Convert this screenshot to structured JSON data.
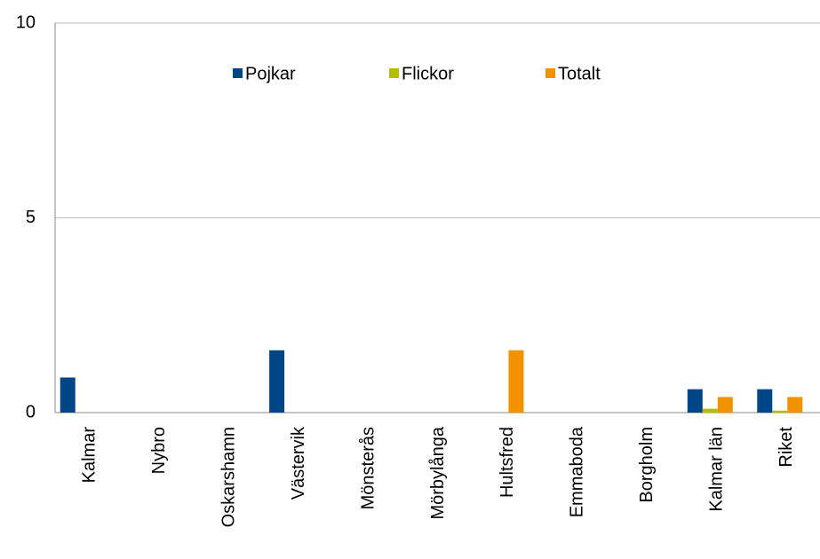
{
  "chart_data": {
    "type": "bar",
    "categories": [
      "Kalmar",
      "Nybro",
      "Oskarshamn",
      "Västervik",
      "Mönsterås",
      "Mörbylånga",
      "Hultsfred",
      "Emmaboda",
      "Borgholm",
      "Kalmar län",
      "Riket"
    ],
    "series": [
      {
        "name": "Pojkar",
        "color": "#004586",
        "values": [
          0.9,
          0,
          0,
          1.6,
          0,
          0,
          0,
          0,
          0,
          0.6,
          0.6
        ]
      },
      {
        "name": "Flickor",
        "color": "#b5bd00",
        "values": [
          0,
          0,
          0,
          0,
          0,
          0,
          0,
          0,
          0,
          0.1,
          0.05
        ]
      },
      {
        "name": "Totalt",
        "color": "#f39200",
        "values": [
          0,
          0,
          0,
          0,
          0,
          0,
          1.6,
          0,
          0,
          0.4,
          0.4
        ]
      }
    ],
    "ylim": [
      0,
      10
    ],
    "yticks": [
      0,
      5,
      10
    ],
    "grid": true
  }
}
